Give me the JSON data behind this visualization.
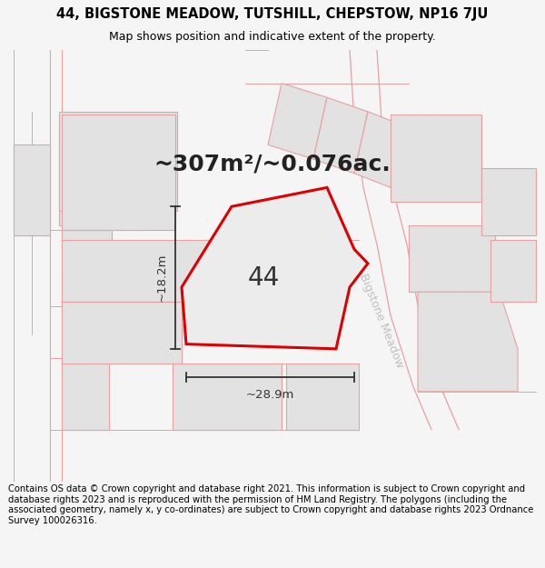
{
  "title_line1": "44, BIGSTONE MEADOW, TUTSHILL, CHEPSTOW, NP16 7JU",
  "title_line2": "Map shows position and indicative extent of the property.",
  "area_text": "~307m²/~0.076ac.",
  "label_44": "44",
  "dim_width": "~28.9m",
  "dim_height": "~18.2m",
  "road_label": "Bigstone Meadow",
  "footer_text": "Contains OS data © Crown copyright and database right 2021. This information is subject to Crown copyright and database rights 2023 and is reproduced with the permission of HM Land Registry. The polygons (including the associated geometry, namely x, y co-ordinates) are subject to Crown copyright and database rights 2023 Ordnance Survey 100026316.",
  "bg_color": "#f5f5f5",
  "map_bg": "#ffffff",
  "plot_fill": "#ececec",
  "plot_edge_color": "#dd0000",
  "neighbor_fill": "#e2e2e2",
  "neighbor_edge_color": "#e8a0a0",
  "dim_color": "#333333",
  "road_color": "#c0c0c0",
  "title_fontsize": 10.5,
  "subtitle_fontsize": 9,
  "footer_fontsize": 7.2,
  "area_fontsize": 18,
  "label_fontsize": 20,
  "dim_fontsize": 9.5
}
